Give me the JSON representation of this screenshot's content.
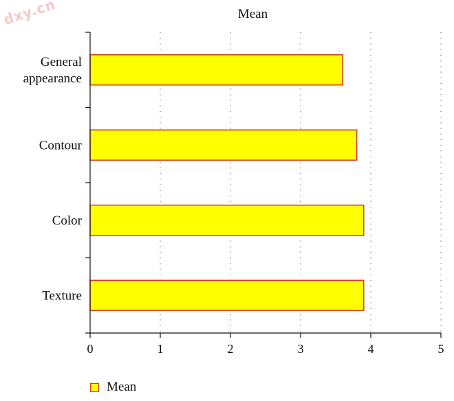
{
  "watermark": "dxy.cn",
  "chart_data": {
    "type": "bar",
    "orientation": "horizontal",
    "title": "Mean",
    "categories": [
      "General appearance",
      "Contour",
      "Color",
      "Texture"
    ],
    "series": [
      {
        "name": "Mean",
        "values": [
          3.6,
          3.8,
          3.9,
          3.9
        ]
      }
    ],
    "xlim": [
      0,
      5
    ],
    "xticks": [
      "0",
      "1",
      "2",
      "3",
      "4",
      "5"
    ],
    "grid": "vertical dotted",
    "legend_position": "bottom-left",
    "colors": {
      "fill": "#ffff00",
      "stroke": "#d83a1c"
    }
  }
}
